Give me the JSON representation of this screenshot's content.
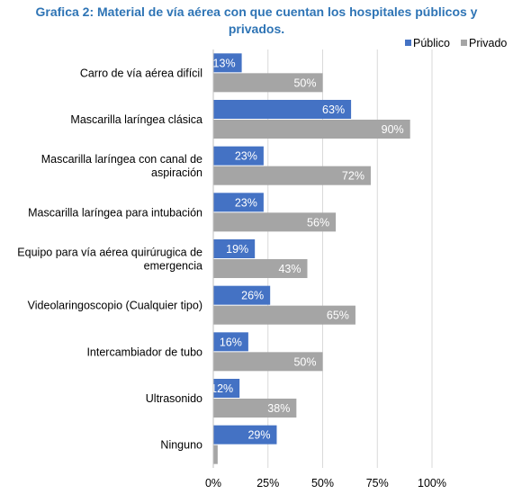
{
  "chart_data": {
    "type": "bar",
    "orientation": "horizontal",
    "title": "Grafica 2: Material de vía aérea con que cuentan los hospitales públicos y privados.",
    "categories": [
      [
        "Carro de vía aérea difícil"
      ],
      [
        "Mascarilla laríngea clásica"
      ],
      [
        "Mascarilla laríngea con canal de",
        "aspiración"
      ],
      [
        "Mascarilla laríngea para intubación"
      ],
      [
        "Equipo para vía aérea quirúrugica de",
        "emergencia"
      ],
      [
        "Videolaringoscopio (Cualquier tipo)"
      ],
      [
        "Intercambiador de tubo"
      ],
      [
        "Ultrasonido"
      ],
      [
        "Ninguno"
      ]
    ],
    "series": [
      {
        "name": "Público",
        "color": "#4472c4",
        "values": [
          13,
          63,
          23,
          23,
          19,
          26,
          16,
          12,
          29
        ],
        "labels": [
          "13%",
          "63%",
          "23%",
          "23%",
          "19%",
          "26%",
          "16%",
          "12%",
          "29%"
        ]
      },
      {
        "name": "Privado",
        "color": "#a5a5a5",
        "values": [
          50,
          90,
          72,
          56,
          43,
          65,
          50,
          38,
          2
        ],
        "labels": [
          "50%",
          "90%",
          "72%",
          "56%",
          "43%",
          "65%",
          "50%",
          "38%",
          ""
        ]
      }
    ],
    "xlim": [
      0,
      100
    ],
    "xticks": [
      {
        "value": 0,
        "label": "0%"
      },
      {
        "value": 25,
        "label": "25%"
      },
      {
        "value": 50,
        "label": "50%"
      },
      {
        "value": 75,
        "label": "75%"
      },
      {
        "value": 100,
        "label": "100%"
      }
    ],
    "grid": true,
    "legend": "top-right",
    "gridline_color": "#d9d9d9"
  }
}
